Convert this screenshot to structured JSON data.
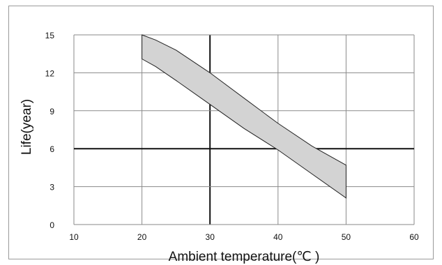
{
  "chart_data": {
    "type": "area",
    "title": "",
    "xlabel": "Ambient temperature(℃ )",
    "ylabel": "Life(year)",
    "xlim": [
      10,
      60
    ],
    "ylim": [
      0,
      15
    ],
    "x_ticks": [
      "10",
      "20",
      "30",
      "40",
      "50",
      "60"
    ],
    "y_ticks": [
      "0",
      "3",
      "6",
      "9",
      "12",
      "15"
    ],
    "grid": true,
    "legend": "none",
    "band_color": "#d3d3d3",
    "series": [
      {
        "x": [
          20,
          22,
          25,
          30,
          35,
          40,
          45,
          50
        ],
        "y_upper": [
          15,
          14.6,
          13.8,
          12,
          10,
          8,
          6.2,
          4.7
        ],
        "y_lower": [
          13.1,
          12.5,
          11.4,
          9.5,
          7.6,
          5.9,
          4.0,
          2.1
        ]
      }
    ]
  }
}
